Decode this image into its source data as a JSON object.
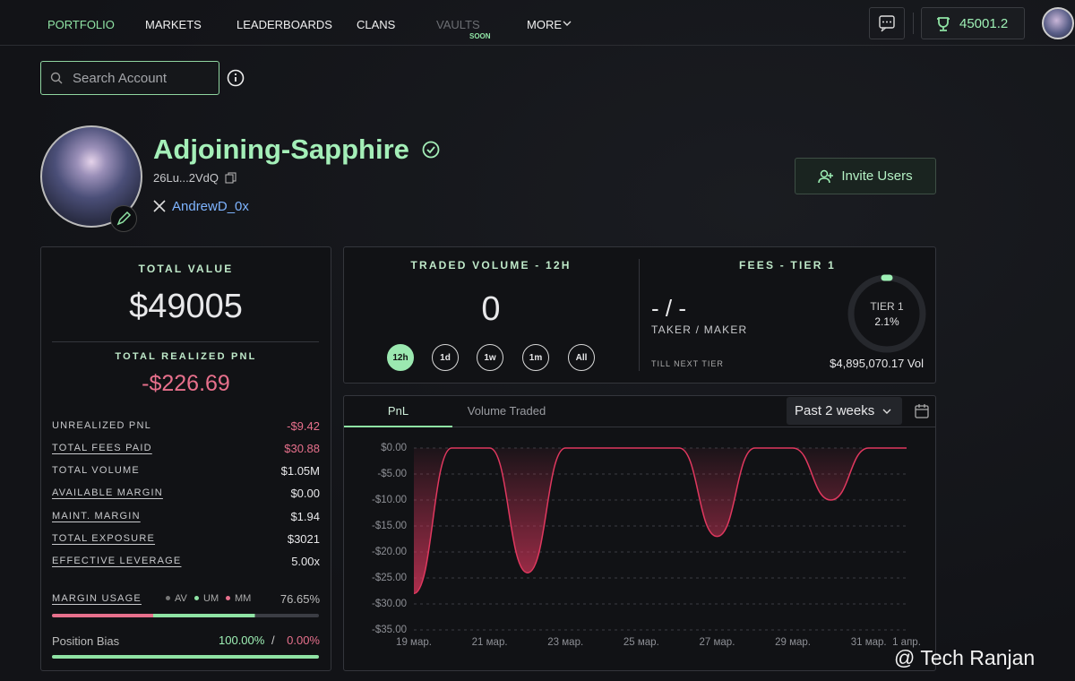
{
  "nav": {
    "items": [
      "PORTFOLIO",
      "MARKETS",
      "LEADERBOARDS",
      "CLANS",
      "VAULTS",
      "MORE"
    ],
    "vaults_badge": "SOON",
    "balance": "45001.2"
  },
  "search": {
    "placeholder": "Search Account"
  },
  "profile": {
    "name": "Adjoining-Sapphire",
    "address": "26Lu...2VdQ",
    "twitter": "AndrewD_0x",
    "invite": "Invite Users"
  },
  "total_value": {
    "label": "TOTAL VALUE",
    "value": "$49005"
  },
  "realized_pnl": {
    "label": "TOTAL REALIZED PNL",
    "value": "-$226.69"
  },
  "stats": [
    {
      "label": "UNREALIZED PNL",
      "value": "-$9.42"
    },
    {
      "label": "TOTAL FEES PAID",
      "value": "$30.88"
    },
    {
      "label": "TOTAL VOLUME",
      "value": "$1.05M"
    },
    {
      "label": "AVAILABLE MARGIN",
      "value": "$0.00"
    },
    {
      "label": "MAINT. MARGIN",
      "value": "$1.94"
    },
    {
      "label": "TOTAL EXPOSURE",
      "value": "$3021"
    },
    {
      "label": "EFFECTIVE LEVERAGE",
      "value": "5.00x"
    }
  ],
  "margin_usage": {
    "label": "MARGIN USAGE",
    "legend": [
      "AV",
      "UM",
      "MM"
    ],
    "value": "76.65%"
  },
  "position_bias": {
    "label": "Position Bias",
    "long": "100.00%",
    "separator": "/",
    "short": "0.00%"
  },
  "traded_volume": {
    "label": "TRADED VOLUME - 12H",
    "value": "0",
    "ranges": [
      "12h",
      "1d",
      "1w",
      "1m",
      "All"
    ]
  },
  "fees": {
    "label": "FEES - TIER 1",
    "value": "- / -",
    "sub": "TAKER / MAKER",
    "tier": "TIER 1",
    "tier_pct": "2.1%",
    "next_label": "TILL NEXT TIER",
    "next_value": "$4,895,070.17 Vol"
  },
  "chart_panel": {
    "tabs": [
      "PnL",
      "Volume Traded"
    ],
    "period": "Past 2 weeks"
  },
  "chart_data": {
    "type": "area",
    "categories": [
      "19 мар.",
      null,
      "21 мар.",
      null,
      "23 мар.",
      null,
      "25 мар.",
      null,
      "27 мар.",
      null,
      "29 мар.",
      null,
      "31 мар.",
      "1 апр."
    ],
    "values": [
      -28,
      0,
      0,
      -24,
      0,
      0,
      0,
      0,
      -17,
      0,
      0,
      -10,
      0,
      0
    ],
    "color": "#e0385f",
    "ylim": [
      -35,
      0
    ],
    "yticks": [
      {
        "value": 0,
        "label": "$0.00"
      },
      {
        "value": -5,
        "label": "-$5.00"
      },
      {
        "value": -10,
        "label": "-$10.00"
      },
      {
        "value": -15,
        "label": "-$15.00"
      },
      {
        "value": -20,
        "label": "-$20.00"
      },
      {
        "value": -25,
        "label": "-$25.00"
      },
      {
        "value": -30,
        "label": "-$30.00"
      },
      {
        "value": -35,
        "label": "-$35.00"
      }
    ],
    "grid": true
  },
  "watermark": "@ Tech Ranjan"
}
